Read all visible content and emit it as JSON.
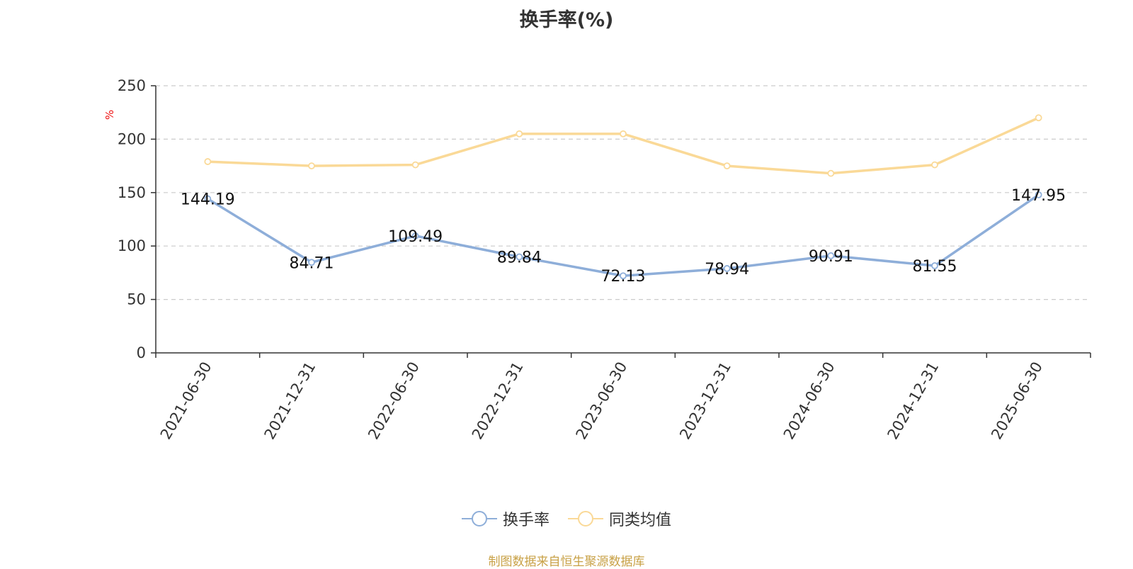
{
  "chart_data": {
    "type": "line",
    "title": "换手率(%)",
    "ylabel": "%",
    "ylim": [
      0,
      250
    ],
    "yticks": [
      0,
      50,
      100,
      150,
      200,
      250
    ],
    "grid": true,
    "legend_position": "bottom",
    "categories": [
      "2021-06-30",
      "2021-12-31",
      "2022-06-30",
      "2022-12-31",
      "2023-06-30",
      "2023-12-31",
      "2024-06-30",
      "2024-12-31",
      "2025-06-30"
    ],
    "series": [
      {
        "name": "换手率",
        "color": "#8eaed9",
        "show_labels": true,
        "values": [
          144.19,
          84.71,
          109.49,
          89.84,
          72.13,
          78.94,
          90.91,
          81.55,
          147.95
        ]
      },
      {
        "name": "同类均值",
        "color": "#fad997",
        "show_labels": false,
        "values": [
          179,
          175,
          176,
          205,
          205,
          175,
          168,
          176,
          220
        ]
      }
    ]
  },
  "colors": {
    "axis": "#333333",
    "grid": "#cccccc",
    "ylabel": "#ee1111",
    "source": "#c8a146"
  },
  "source_note": "制图数据来自恒生聚源数据库"
}
